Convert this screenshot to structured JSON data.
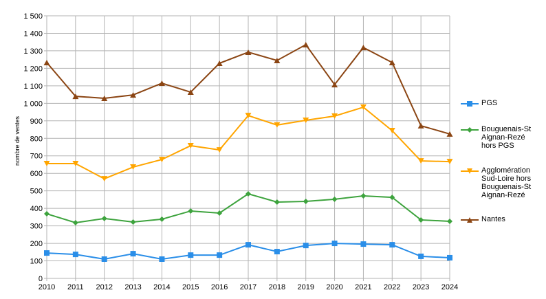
{
  "chart_data": {
    "type": "line",
    "title": "",
    "xlabel": "",
    "ylabel": "nombre de ventes",
    "ylim": [
      0,
      1500
    ],
    "y_ticks": [
      "0",
      "100",
      "200",
      "300",
      "400",
      "500",
      "600",
      "700",
      "800",
      "900",
      "1 000",
      "1 100",
      "1 200",
      "1 300",
      "1 400",
      "1 500"
    ],
    "x": [
      "2010",
      "2011",
      "2012",
      "2013",
      "2014",
      "2015",
      "2016",
      "2017",
      "2018",
      "2019",
      "2020",
      "2021",
      "2022",
      "2023",
      "2024"
    ],
    "grid": true,
    "legend": "right",
    "series": [
      {
        "name": "PGS",
        "color": "#2a8ee8",
        "marker": "square",
        "values": [
          145,
          137,
          110,
          141,
          110,
          133,
          133,
          192,
          153,
          188,
          200,
          196,
          192,
          126,
          118
        ]
      },
      {
        "name": "Bouguenais-St Aignan-Rezé hors PGS",
        "color": "#3da33d",
        "marker": "diamond",
        "values": [
          369,
          318,
          342,
          322,
          338,
          385,
          373,
          483,
          436,
          440,
          452,
          471,
          463,
          334,
          326
        ]
      },
      {
        "name": "Agglomération Sud-Loire hors Bouguenais-St Aignan-Rezé",
        "color": "#ffa500",
        "marker": "triangle-down",
        "values": [
          656,
          656,
          569,
          636,
          679,
          758,
          734,
          930,
          876,
          903,
          927,
          978,
          844,
          671,
          667
        ]
      },
      {
        "name": "Nantes",
        "color": "#8b4513",
        "marker": "triangle-up",
        "values": [
          1233,
          1040,
          1029,
          1048,
          1115,
          1064,
          1229,
          1292,
          1245,
          1335,
          1107,
          1319,
          1233,
          872,
          825
        ]
      }
    ]
  }
}
